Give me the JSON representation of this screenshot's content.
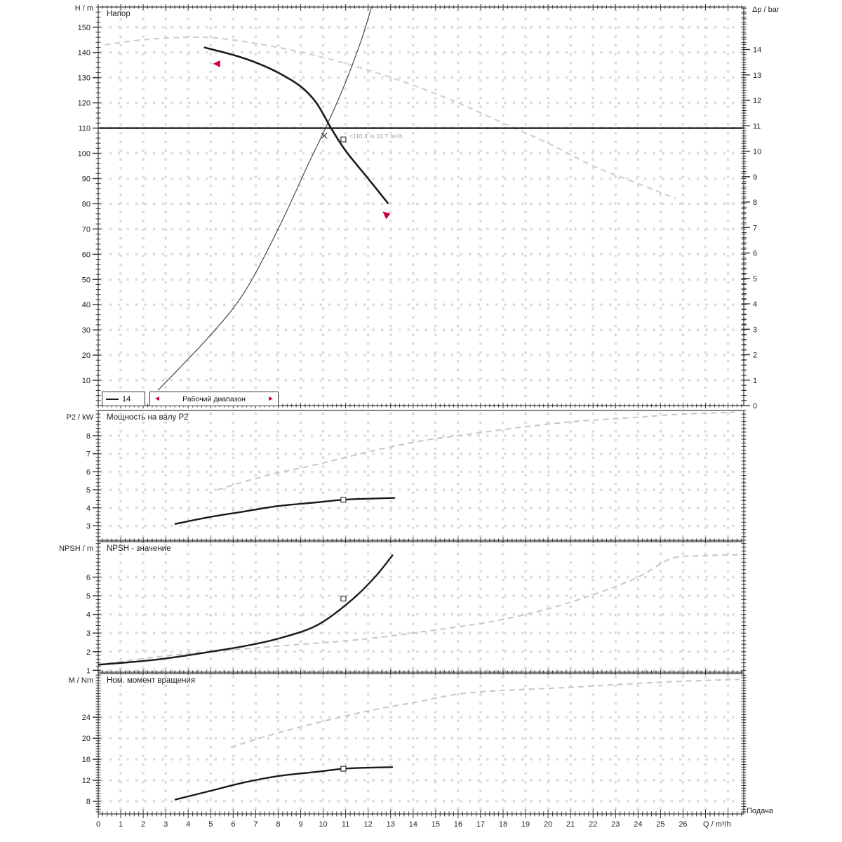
{
  "colors": {
    "accent_red": "#cc0038",
    "curve_black": "#1a1a1a",
    "curve_gray": "#cfcfcf",
    "grid": "#dcdcdc",
    "axis": "#333333",
    "tick_text": "#222222"
  },
  "x_axis": {
    "label": "Q / m³/h",
    "flow_label": "Подача",
    "min": 0,
    "max": 28.7,
    "ticks": [
      0,
      1,
      2,
      3,
      4,
      5,
      6,
      7,
      8,
      9,
      10,
      11,
      12,
      13,
      14,
      15,
      16,
      17,
      18,
      19,
      20,
      21,
      22,
      23,
      24,
      25,
      26
    ]
  },
  "chart_data": [
    {
      "id": "head",
      "type": "line",
      "title": "Напор",
      "ylabel": "H / m",
      "ylabel2": "Δp / bar",
      "ylim": [
        0,
        158
      ],
      "yticks": [
        10,
        20,
        30,
        40,
        50,
        60,
        70,
        80,
        90,
        100,
        110,
        120,
        130,
        140,
        150
      ],
      "y2lim": [
        0,
        15.67
      ],
      "y2ticks": [
        0,
        1,
        2,
        3,
        4,
        5,
        6,
        7,
        8,
        9,
        10,
        11,
        12,
        13,
        14
      ],
      "series": [
        {
          "name": "max-range-curve",
          "style": "dashed",
          "color": "#d0d0d0",
          "width": 2.2,
          "points": [
            [
              0.3,
              143
            ],
            [
              2,
              145
            ],
            [
              4,
              146
            ],
            [
              5.5,
              145.5
            ],
            [
              8,
              142
            ],
            [
              10,
              138
            ],
            [
              12,
              133
            ],
            [
              14,
              127
            ],
            [
              16,
              120
            ],
            [
              18,
              112
            ],
            [
              20,
              104
            ],
            [
              22,
              95
            ],
            [
              24,
              88
            ],
            [
              25.7,
              82
            ]
          ]
        },
        {
          "name": "duty-head-line",
          "style": "solid",
          "color": "#000000",
          "width": 2.2,
          "points": [
            [
              0,
              110
            ],
            [
              28.7,
              110
            ]
          ]
        },
        {
          "name": "efficiency-curve",
          "style": "solid",
          "color": "#3a3a3a",
          "width": 1.1,
          "points": [
            [
              2.65,
              6
            ],
            [
              5,
              28
            ],
            [
              6.5,
              45
            ],
            [
              8,
              70
            ],
            [
              9.3,
              95
            ],
            [
              10.05,
              109
            ],
            [
              10.9,
              126
            ],
            [
              11.7,
              145
            ],
            [
              12.15,
              158
            ]
          ]
        },
        {
          "name": "pump-curve",
          "style": "solid",
          "color": "#1a1a1a",
          "width": 2.6,
          "points": [
            [
              4.7,
              142
            ],
            [
              6,
              139
            ],
            [
              7,
              136
            ],
            [
              8,
              132
            ],
            [
              9,
              126.5
            ],
            [
              9.7,
              120
            ],
            [
              10.35,
              110
            ],
            [
              11,
              101
            ],
            [
              12,
              90
            ],
            [
              12.9,
              80
            ]
          ]
        }
      ],
      "markers": [
        {
          "shape": "range-start-arrow",
          "q": 5.2,
          "v": 135.5
        },
        {
          "shape": "range-end-arrow",
          "q": 12.8,
          "v": 75
        },
        {
          "shape": "cross",
          "q": 10.05,
          "v": 107
        },
        {
          "shape": "duty-square",
          "q": 10.9,
          "v": 105.5
        }
      ],
      "annotation": {
        "text": "≈110.4 m  10.7 m³/h"
      },
      "legend": {
        "stage_label": "14",
        "range_label": "Рабочий диапазон",
        "arrow_left": "◄",
        "arrow_right": "►"
      }
    },
    {
      "id": "power",
      "type": "line",
      "title": "Мощность на валу P2",
      "ylabel": "P2 / kW",
      "ylim": [
        2.2,
        9.4
      ],
      "yticks": [
        3,
        4,
        5,
        6,
        7,
        8
      ],
      "series": [
        {
          "name": "max-power-curve",
          "style": "dashed",
          "color": "#c6c6c6",
          "width": 2,
          "points": [
            [
              5.3,
              5.0
            ],
            [
              7.5,
              5.8
            ],
            [
              9.7,
              6.4
            ],
            [
              12,
              7.1
            ],
            [
              14.3,
              7.7
            ],
            [
              16.6,
              8.1
            ],
            [
              19,
              8.5
            ],
            [
              21.3,
              8.8
            ],
            [
              23.7,
              9.0
            ],
            [
              26,
              9.2
            ],
            [
              28.3,
              9.3
            ]
          ]
        },
        {
          "name": "power-curve",
          "style": "solid",
          "color": "#1a1a1a",
          "width": 2.4,
          "points": [
            [
              3.4,
              3.1
            ],
            [
              5,
              3.5
            ],
            [
              6.5,
              3.8
            ],
            [
              8,
              4.1
            ],
            [
              9.7,
              4.3
            ],
            [
              10.9,
              4.45
            ],
            [
              11.8,
              4.5
            ],
            [
              13.2,
              4.55
            ]
          ]
        }
      ],
      "markers": [
        {
          "shape": "duty-square",
          "q": 10.9,
          "v": 4.45
        }
      ]
    },
    {
      "id": "npsh",
      "type": "line",
      "title": "NPSH - значение",
      "ylabel": "NPSH / m",
      "ylim": [
        0.9,
        7.9
      ],
      "yticks": [
        1,
        2,
        3,
        4,
        5,
        6
      ],
      "series": [
        {
          "name": "max-npsh-curve",
          "style": "dashed",
          "color": "#c6c6c6",
          "width": 2,
          "points": [
            [
              0,
              1.3
            ],
            [
              2.5,
              1.7
            ],
            [
              5,
              2.0
            ],
            [
              8,
              2.3
            ],
            [
              11.2,
              2.6
            ],
            [
              14,
              3.0
            ],
            [
              17.4,
              3.6
            ],
            [
              20,
              4.3
            ],
            [
              22.1,
              5.1
            ],
            [
              24,
              6.0
            ],
            [
              25.5,
              7.0
            ],
            [
              27,
              7.15
            ],
            [
              28.5,
              7.2
            ]
          ]
        },
        {
          "name": "npsh-curve",
          "style": "solid",
          "color": "#1a1a1a",
          "width": 2.4,
          "points": [
            [
              0,
              1.3
            ],
            [
              2,
              1.5
            ],
            [
              3.4,
              1.7
            ],
            [
              5,
              2.0
            ],
            [
              6.5,
              2.3
            ],
            [
              8,
              2.7
            ],
            [
              9.7,
              3.4
            ],
            [
              11.2,
              4.7
            ],
            [
              12.3,
              6.0
            ],
            [
              13.1,
              7.2
            ]
          ]
        }
      ],
      "markers": [
        {
          "shape": "duty-square",
          "q": 10.9,
          "v": 4.85
        }
      ]
    },
    {
      "id": "torque",
      "type": "line",
      "title": "Ном. момент вращения",
      "ylabel": "M / Nm",
      "ylim": [
        5.6,
        32.3
      ],
      "yticks": [
        8,
        12,
        16,
        20,
        24
      ],
      "series": [
        {
          "name": "max-torque-curve",
          "style": "dashed",
          "color": "#c6c6c6",
          "width": 2,
          "points": [
            [
              5.9,
              18.3
            ],
            [
              7.8,
              20.8
            ],
            [
              9.7,
              22.9
            ],
            [
              12,
              25.2
            ],
            [
              14.3,
              27
            ],
            [
              16,
              28.4
            ],
            [
              18,
              29.1
            ],
            [
              20.6,
              29.6
            ],
            [
              23,
              30.2
            ],
            [
              25.2,
              30.7
            ],
            [
              27,
              31
            ],
            [
              28.5,
              31.2
            ]
          ]
        },
        {
          "name": "torque-curve",
          "style": "solid",
          "color": "#1a1a1a",
          "width": 2.4,
          "points": [
            [
              3.4,
              8.3
            ],
            [
              5,
              10
            ],
            [
              6.5,
              11.6
            ],
            [
              8,
              12.8
            ],
            [
              9.7,
              13.6
            ],
            [
              10.9,
              14.2
            ],
            [
              12,
              14.4
            ],
            [
              13.1,
              14.5
            ]
          ]
        }
      ],
      "markers": [
        {
          "shape": "duty-square",
          "q": 10.9,
          "v": 14.2
        }
      ]
    }
  ]
}
